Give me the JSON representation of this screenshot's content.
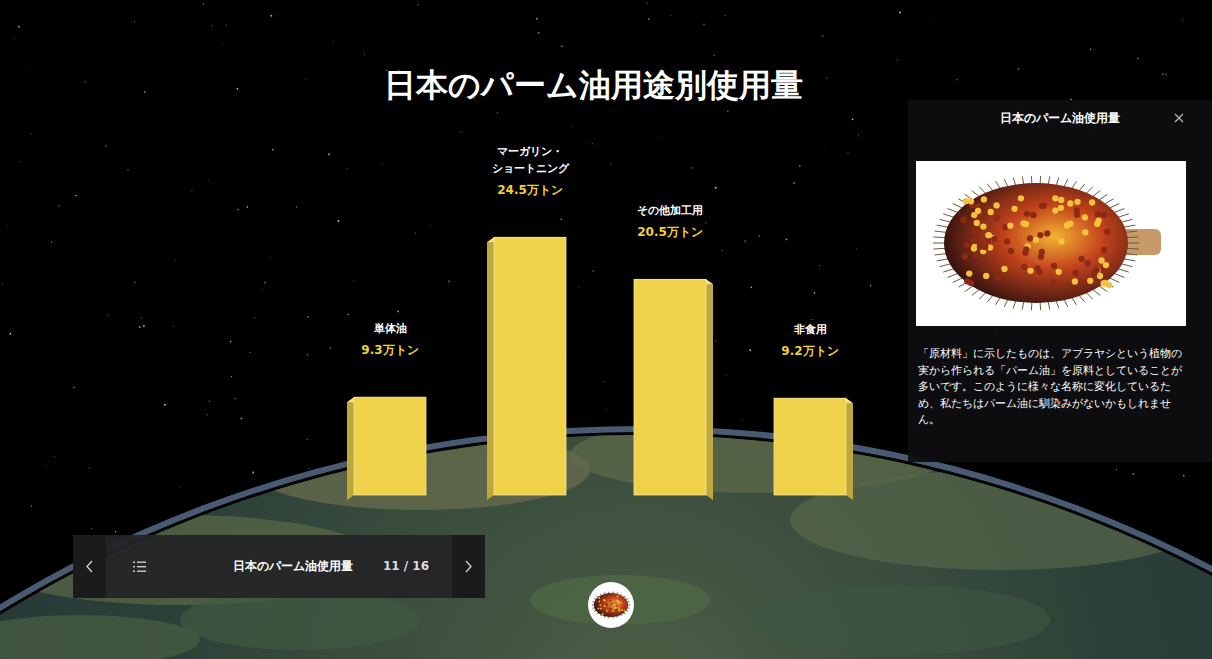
{
  "chart_data": {
    "type": "bar",
    "title": "日本のパーム油用途別使用量",
    "categories": [
      "単体油",
      "マーガリン・ショートニング",
      "その他加工用",
      "非食用"
    ],
    "values": [
      9.3,
      24.5,
      20.5,
      9.2
    ],
    "value_labels": [
      "9.3万トン",
      "24.5万トン",
      "20.5万トン",
      "9.2万トン"
    ],
    "color": "#efd24a",
    "ylim": [
      0,
      25
    ],
    "data_labels": true,
    "tick_labels": false
  },
  "panel": {
    "title": "日本のパーム油使用量",
    "text": "「原材料」に示したものは、アブラヤシという植物の実から作られる「パーム油」を原料としていることが多いです。このように様々な名称に変化しているため、私たちはパーム油に馴染みがないかもしれません。"
  },
  "navigation": {
    "title": "日本のパーム油使用量",
    "page": "11 / 16"
  }
}
